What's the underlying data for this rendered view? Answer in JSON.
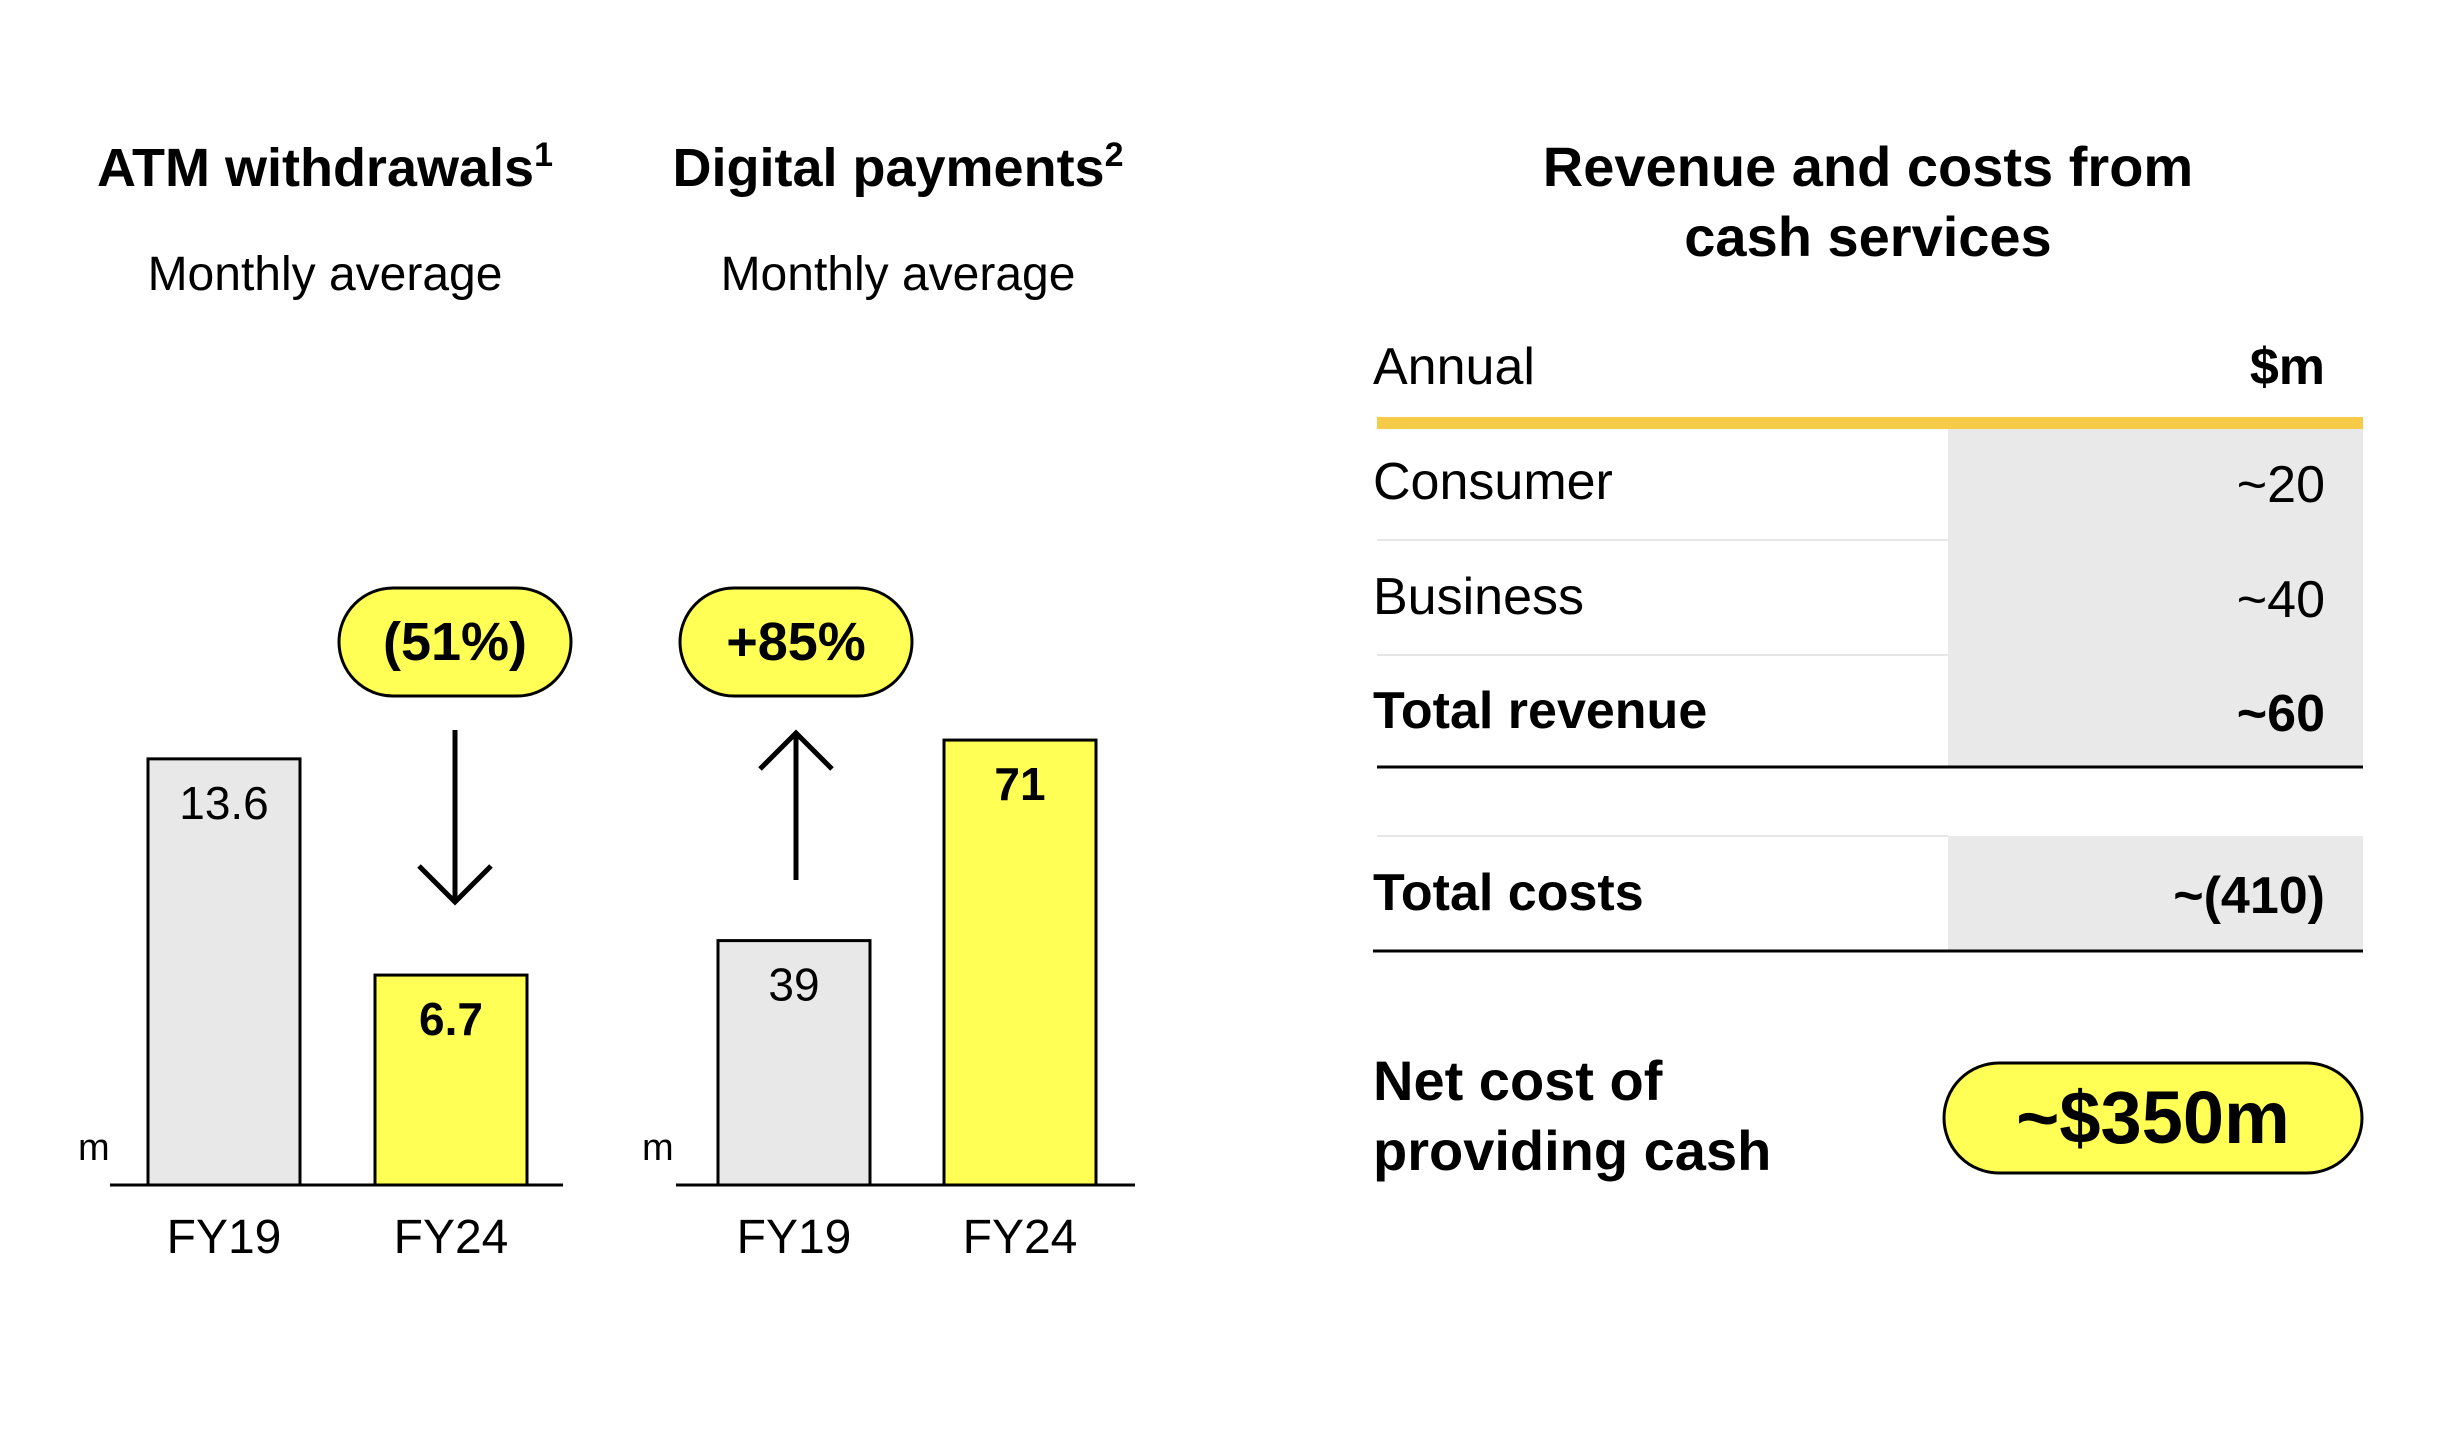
{
  "colors": {
    "gray_bar": "#e8e8e8",
    "highlight": "#ffff55",
    "gold_rule": "#f5cb47",
    "table_shade": "#e9e9e9",
    "row_divider": "#e6e6e6",
    "ink": "#000000"
  },
  "chart_data": [
    {
      "type": "bar",
      "title": "ATM withdrawals",
      "title_footnote": "1",
      "subtitle": "Monthly average",
      "unit_label": "m",
      "categories": [
        "FY19",
        "FY24"
      ],
      "values": [
        13.6,
        6.7
      ],
      "value_labels": [
        "13.6",
        "6.7"
      ],
      "bar_fill": [
        "gray",
        "highlight"
      ],
      "change_label": "(51%)",
      "change_direction": "down",
      "ylim": [
        0,
        15
      ]
    },
    {
      "type": "bar",
      "title": "Digital payments",
      "title_footnote": "2",
      "subtitle": "Monthly average",
      "unit_label": "m",
      "categories": [
        "FY19",
        "FY24"
      ],
      "values": [
        39,
        71
      ],
      "value_labels": [
        "39",
        "71"
      ],
      "bar_fill": [
        "gray",
        "highlight"
      ],
      "change_label": "+85%",
      "change_direction": "up",
      "ylim": [
        0,
        75
      ]
    }
  ],
  "table": {
    "title_line1": "Revenue and costs from",
    "title_line2": "cash services",
    "header_left": "Annual",
    "header_right": "$m",
    "rows": [
      {
        "label": "Consumer",
        "value": "~20",
        "bold": false
      },
      {
        "label": "Business",
        "value": "~40",
        "bold": false
      },
      {
        "label": "Total revenue",
        "value": "~60",
        "bold": true
      }
    ],
    "costs": {
      "label": "Total costs",
      "value": "~(410)"
    },
    "net": {
      "label_line1": "Net cost of",
      "label_line2": "providing cash",
      "value": "~$350m"
    }
  }
}
